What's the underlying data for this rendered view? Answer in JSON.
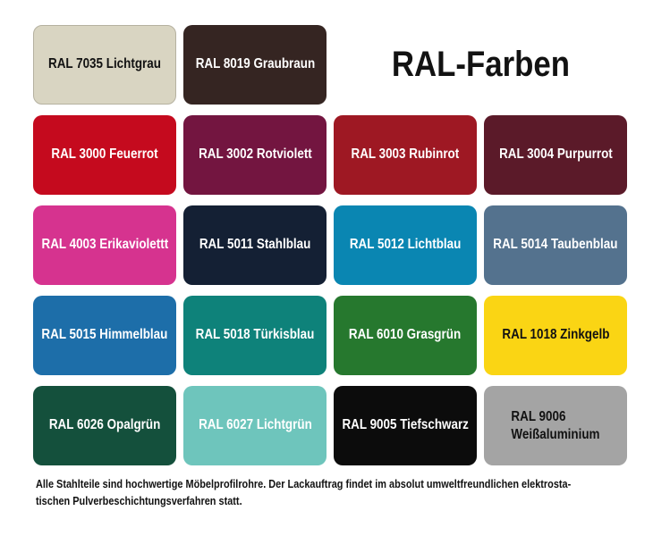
{
  "title": "RAL-Farben",
  "caption": {
    "line1": "Alle Stahlteile sind hochwertige Möbelprofilrohre. Der Lackauftrag findet im absolut umweltfreundlichen elektrosta-",
    "line2": "tischen Pulverbeschichtungsverfahren statt."
  },
  "colors": {
    "background": "#ffffff",
    "dark_text": "#121212",
    "light_text": "#ffffff"
  },
  "swatches": [
    {
      "code": "RAL 7035",
      "name": "Lichtgrau",
      "label": "RAL 7035 Lichtgrau",
      "hex": "#D9D5C2",
      "text_color": "#121212",
      "border": "#B5B1A0"
    },
    {
      "code": "RAL 8019",
      "name": "Graubraun",
      "label": "RAL 8019 Graubraun",
      "hex": "#352522",
      "text_color": "#ffffff"
    },
    {
      "code": "RAL 3000",
      "name": "Feuerrot",
      "label": "RAL 3000 Feuerrot",
      "hex": "#C50A1E",
      "text_color": "#ffffff"
    },
    {
      "code": "RAL 3002",
      "name": "Rotviolett",
      "label": "RAL 3002 Rotviolett",
      "hex": "#731540",
      "text_color": "#ffffff"
    },
    {
      "code": "RAL 3003",
      "name": "Rubinrot",
      "label": "RAL 3003 Rubinrot",
      "hex": "#9E1823",
      "text_color": "#ffffff"
    },
    {
      "code": "RAL 3004",
      "name": "Purpurrot",
      "label": "RAL 3004 Purpurrot",
      "hex": "#5B1A29",
      "text_color": "#ffffff"
    },
    {
      "code": "RAL 4003",
      "name": "Erikaviolettt",
      "label": "RAL 4003 Erikaviolettt",
      "hex": "#D6338F",
      "text_color": "#ffffff"
    },
    {
      "code": "RAL 5011",
      "name": "Stahlblau",
      "label": "RAL 5011 Stahlblau",
      "hex": "#142034",
      "text_color": "#ffffff"
    },
    {
      "code": "RAL 5012",
      "name": "Lichtblau",
      "label": "RAL 5012 Lichtblau",
      "hex": "#0A86B2",
      "text_color": "#ffffff"
    },
    {
      "code": "RAL 5014",
      "name": "Taubenblau",
      "label": "RAL 5014 Taubenblau",
      "hex": "#54728E",
      "text_color": "#ffffff"
    },
    {
      "code": "RAL 5015",
      "name": "Himmelblau",
      "label": "RAL 5015 Himmelblau",
      "hex": "#1D6EA9",
      "text_color": "#ffffff"
    },
    {
      "code": "RAL 5018",
      "name": "Türkisblau",
      "label": "RAL 5018 Türkisblau",
      "hex": "#0E827A",
      "text_color": "#ffffff"
    },
    {
      "code": "RAL 6010",
      "name": "Grasgrün",
      "label": "RAL 6010 Grasgrün",
      "hex": "#26782E",
      "text_color": "#ffffff"
    },
    {
      "code": "RAL 1018",
      "name": "Zinkgelb",
      "label": "RAL 1018 Zinkgelb",
      "hex": "#FAD514",
      "text_color": "#121212"
    },
    {
      "code": "RAL 6026",
      "name": "Opalgrün",
      "label": "RAL 6026 Opalgrün",
      "hex": "#14503C",
      "text_color": "#ffffff"
    },
    {
      "code": "RAL 6027",
      "name": "Lichtgrün",
      "label": "RAL 6027 Lichtgrün",
      "hex": "#6EC5BC",
      "text_color": "#ffffff"
    },
    {
      "code": "RAL 9005",
      "name": "Tiefschwarz",
      "label": "RAL 9005 Tiefschwarz",
      "hex": "#0C0C0C",
      "text_color": "#ffffff"
    },
    {
      "code": "RAL 9006",
      "name": "Weißaluminium",
      "label": "RAL 9006 Weißaluminium",
      "hex": "#A4A4A4",
      "text_color": "#121212",
      "lines": [
        "RAL 9006",
        "Weißaluminium"
      ]
    }
  ]
}
